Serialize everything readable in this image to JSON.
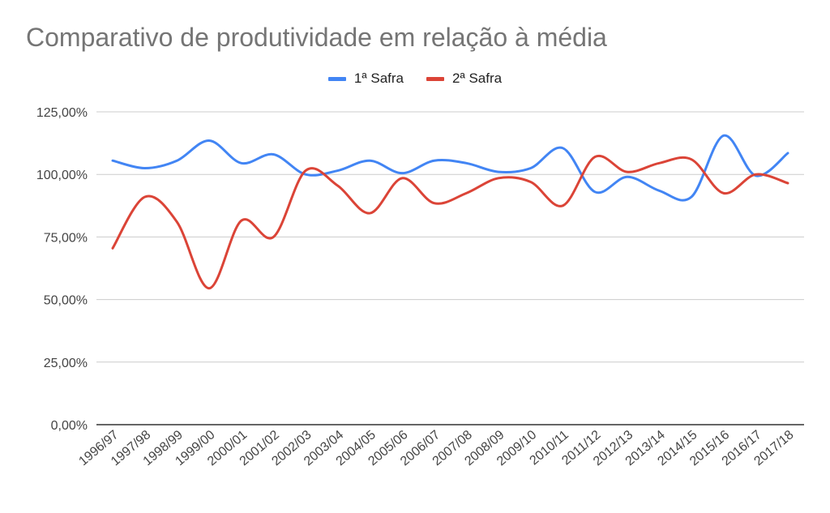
{
  "chart_data": {
    "type": "line",
    "title": "Comparativo de produtividade em relação à média",
    "xlabel": "",
    "ylabel": "",
    "categories": [
      "1996/97",
      "1997/98",
      "1998/99",
      "1999/00",
      "2000/01",
      "2001/02",
      "2002/03",
      "2003/04",
      "2004/05",
      "2005/06",
      "2006/07",
      "2007/08",
      "2008/09",
      "2009/10",
      "2010/11",
      "2011/12",
      "2012/13",
      "2013/14",
      "2014/15",
      "2015/16",
      "2016/17",
      "2017/18"
    ],
    "ylim": [
      0,
      125
    ],
    "yticks": [
      0,
      25,
      50,
      75,
      100,
      125
    ],
    "ytick_labels": [
      "0,00%",
      "25,00%",
      "50,00%",
      "75,00%",
      "100,00%",
      "125,00%"
    ],
    "grid": true,
    "legend_position": "top-center",
    "series": [
      {
        "name": "1ª Safra",
        "color": "#4285f4",
        "values": [
          105.5,
          102.5,
          105.5,
          113.5,
          104.5,
          108,
          100,
          101.5,
          105.5,
          100.5,
          105.5,
          104.5,
          101,
          102.5,
          110.5,
          93,
          99,
          93.5,
          91,
          115.5,
          99.5,
          108.5
        ]
      },
      {
        "name": "2ª Safra",
        "color": "#db4437",
        "values": [
          70.5,
          91,
          81,
          54.5,
          81.5,
          75,
          101.5,
          95.5,
          84.5,
          98.5,
          88.5,
          92.5,
          98.5,
          97,
          87.5,
          107,
          101,
          104.5,
          106,
          92.5,
          100,
          96.5
        ]
      }
    ]
  }
}
